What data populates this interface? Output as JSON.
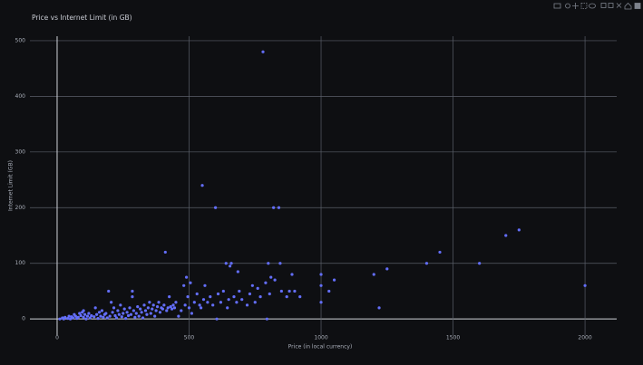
{
  "chart_data": {
    "type": "scatter",
    "title": "Price vs Internet Limit (in GB)",
    "x_label": "Price (in local currency)",
    "y_label": "Internet Limit (GB)",
    "color": "#636efa",
    "grid": true,
    "xlim": [
      -103,
      2120
    ],
    "xticks": [
      0,
      500,
      1000,
      1500,
      2000
    ],
    "ylim": [
      -29,
      508
    ],
    "yticks": [
      0,
      100,
      200,
      300,
      400,
      500
    ],
    "x": [
      10,
      20,
      25,
      30,
      40,
      45,
      50,
      55,
      60,
      65,
      70,
      75,
      80,
      85,
      90,
      95,
      100,
      100,
      105,
      110,
      115,
      120,
      125,
      130,
      140,
      145,
      150,
      155,
      160,
      165,
      170,
      175,
      180,
      185,
      190,
      195,
      200,
      205,
      210,
      215,
      220,
      225,
      230,
      235,
      240,
      245,
      250,
      255,
      260,
      265,
      270,
      275,
      280,
      285,
      285,
      290,
      295,
      300,
      305,
      310,
      315,
      320,
      325,
      330,
      335,
      340,
      345,
      350,
      355,
      360,
      365,
      370,
      375,
      380,
      385,
      390,
      395,
      400,
      405,
      410,
      415,
      420,
      425,
      430,
      435,
      440,
      445,
      450,
      460,
      470,
      480,
      485,
      490,
      495,
      500,
      505,
      510,
      520,
      530,
      540,
      545,
      550,
      555,
      560,
      570,
      580,
      590,
      600,
      605,
      610,
      620,
      630,
      640,
      645,
      650,
      655,
      660,
      670,
      680,
      685,
      690,
      700,
      720,
      730,
      740,
      750,
      760,
      770,
      780,
      790,
      795,
      800,
      805,
      810,
      820,
      825,
      840,
      845,
      850,
      870,
      880,
      890,
      900,
      920,
      1000,
      1000,
      1000,
      1030,
      1050,
      1200,
      1220,
      1250,
      1400,
      1450,
      1600,
      1700,
      1750,
      2000
    ],
    "y": [
      0,
      2,
      0,
      3,
      1,
      5,
      0,
      4,
      2,
      8,
      5,
      1,
      3,
      10,
      6,
      12,
      15,
      3,
      8,
      0,
      5,
      10,
      2,
      6,
      4,
      20,
      8,
      1,
      12,
      5,
      15,
      3,
      8,
      10,
      2,
      50,
      5,
      30,
      12,
      20,
      6,
      2,
      15,
      8,
      25,
      4,
      10,
      18,
      1,
      12,
      6,
      20,
      8,
      50,
      40,
      15,
      3,
      10,
      22,
      5,
      18,
      12,
      2,
      25,
      15,
      8,
      20,
      30,
      10,
      18,
      25,
      5,
      15,
      22,
      30,
      12,
      20,
      18,
      25,
      120,
      15,
      20,
      40,
      22,
      18,
      25,
      20,
      30,
      5,
      15,
      60,
      25,
      75,
      40,
      20,
      65,
      10,
      30,
      45,
      25,
      20,
      240,
      35,
      60,
      30,
      40,
      25,
      200,
      0,
      45,
      30,
      50,
      100,
      20,
      35,
      95,
      100,
      40,
      30,
      85,
      50,
      35,
      25,
      45,
      60,
      30,
      55,
      40,
      480,
      65,
      0,
      100,
      45,
      75,
      200,
      70,
      200,
      100,
      50,
      40,
      50,
      80,
      50,
      40,
      80,
      60,
      30,
      50,
      70,
      80,
      20,
      90,
      100,
      120,
      100,
      150,
      160,
      60
    ]
  }
}
